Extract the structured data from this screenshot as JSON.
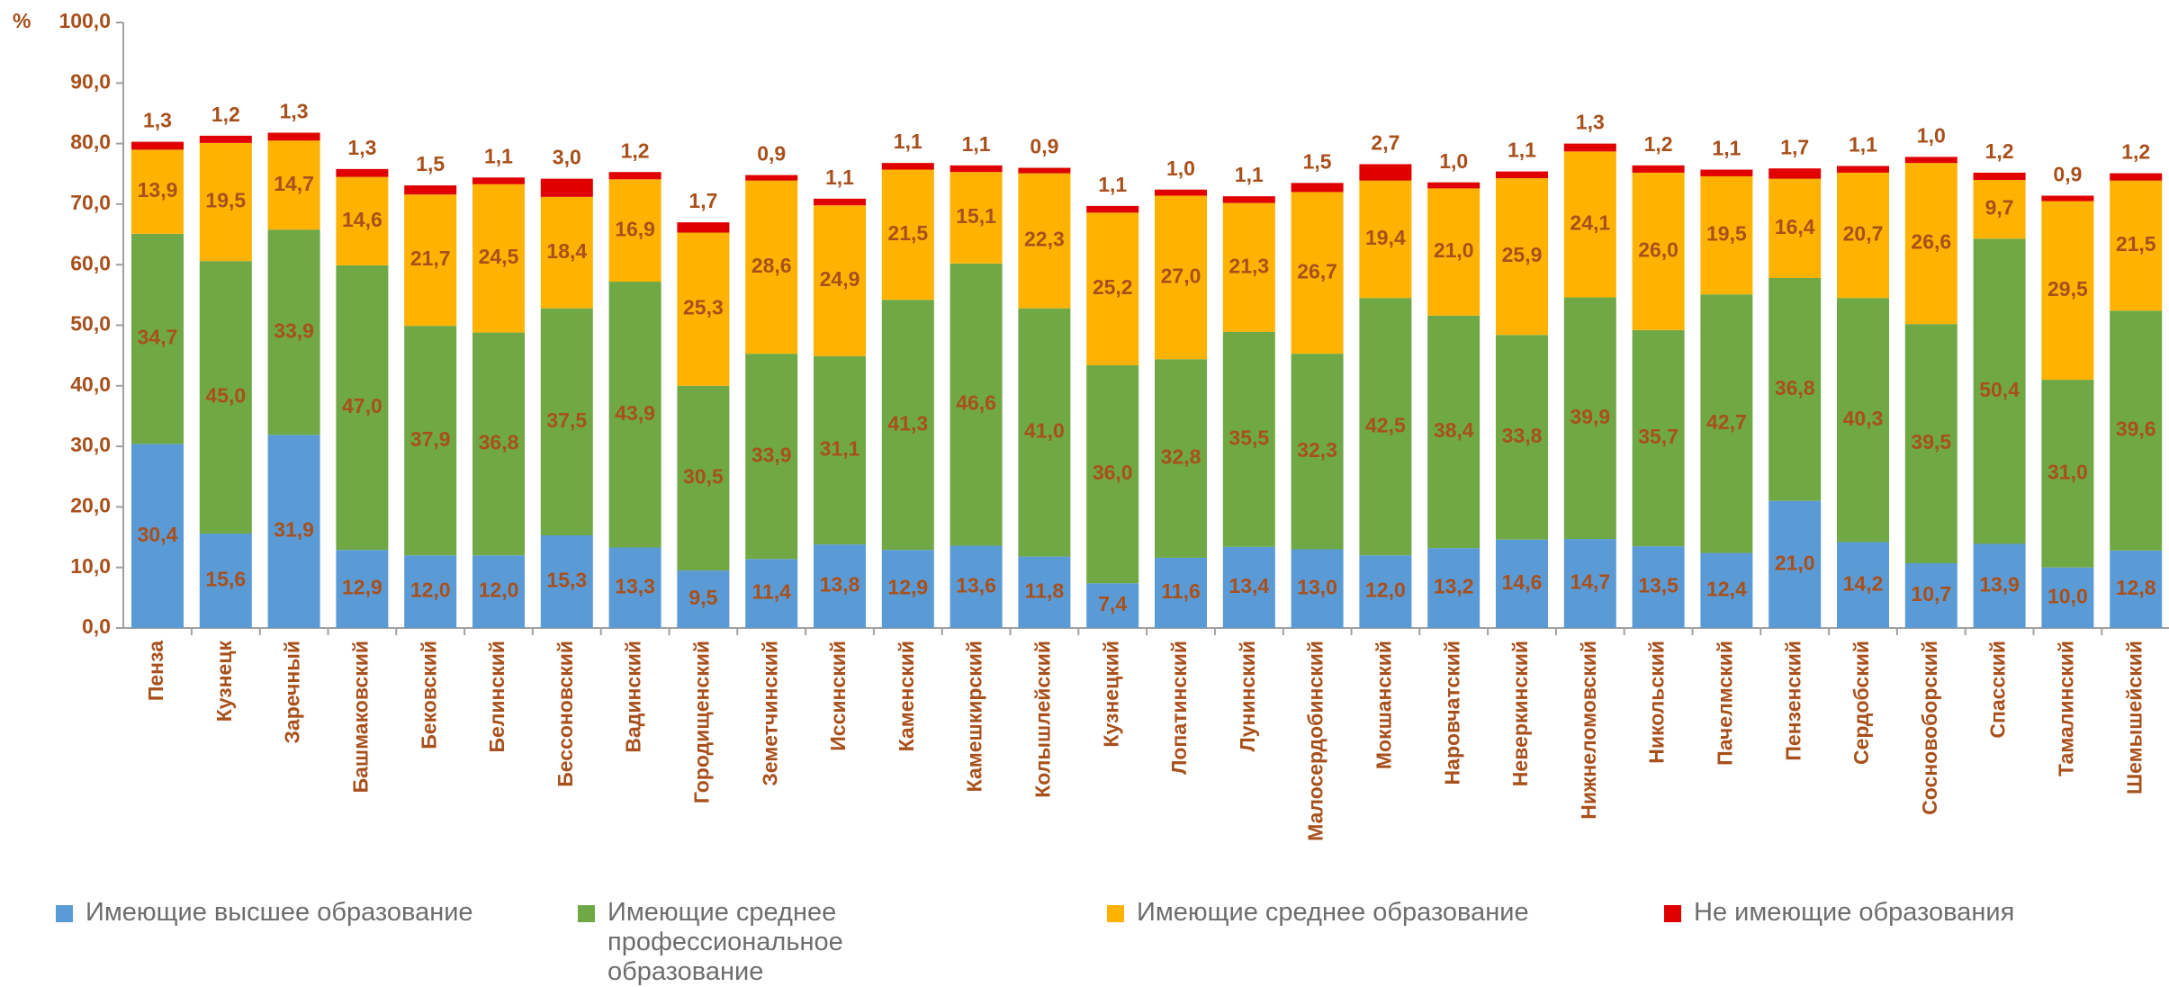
{
  "chart_data": {
    "type": "stacked_bar",
    "y_unit": "%",
    "categories": [
      "Пенза",
      "Кузнецк",
      "Заречный",
      "Башмаковский",
      "Бековский",
      "Белинский",
      "Бессоновский",
      "Вадинский",
      "Городищенский",
      "Земетчинский",
      "Иссинский",
      "Каменский",
      "Камешкирский",
      "Колышлейский",
      "Кузнецкий",
      "Лопатинский",
      "Лунинский",
      "Малосердобинский",
      "Мокшанский",
      "Наровчатский",
      "Неверкинский",
      "Нижнеломовский",
      "Никольский",
      "Пачелмский",
      "Пензенский",
      "Сердобский",
      "Сосновоборский",
      "Спасский",
      "Тамалинский",
      "Шемышейский"
    ],
    "series": [
      {
        "name": "Имеющие высшее образование",
        "color": "#5b9bd5",
        "values": [
          30.4,
          15.6,
          31.9,
          12.9,
          12.0,
          12.0,
          15.3,
          13.3,
          9.5,
          11.4,
          13.8,
          12.9,
          13.6,
          11.8,
          7.4,
          11.6,
          13.4,
          13.0,
          12.0,
          13.2,
          14.6,
          14.7,
          13.5,
          12.4,
          21.0,
          14.2,
          10.7,
          13.9,
          10.0,
          12.8
        ],
        "value_labels": [
          "30,4",
          "15,6",
          "31,9",
          "12,9",
          "12,0",
          "12,0",
          "15,3",
          "13,3",
          "9,5",
          "11,4",
          "13,8",
          "12,9",
          "13,6",
          "11,8",
          "7,4",
          "11,6",
          "13,4",
          "13,0",
          "12,0",
          "13,2",
          "14,6",
          "14,7",
          "13,5",
          "12,4",
          "21,0",
          "14,2",
          "10,7",
          "13,9",
          "10,0",
          "12,8"
        ]
      },
      {
        "name": "Имеющие среднее профессиональное образование",
        "color": "#70a845",
        "values": [
          34.7,
          45.0,
          33.9,
          47.0,
          37.9,
          36.8,
          37.5,
          43.9,
          30.5,
          33.9,
          31.1,
          41.3,
          46.6,
          41.0,
          36.0,
          32.8,
          35.5,
          32.3,
          42.5,
          38.4,
          33.8,
          39.9,
          35.7,
          42.7,
          36.8,
          40.3,
          39.5,
          50.4,
          31.0,
          39.6
        ],
        "value_labels": [
          "34,7",
          "45,0",
          "33,9",
          "47,0",
          "37,9",
          "36,8",
          "37,5",
          "43,9",
          "30,5",
          "33,9",
          "31,1",
          "41,3",
          "46,6",
          "41,0",
          "36,0",
          "32,8",
          "35,5",
          "32,3",
          "42,5",
          "38,4",
          "33,8",
          "39,9",
          "35,7",
          "42,7",
          "36,8",
          "40,3",
          "39,5",
          "50,4",
          "31,0",
          "39,6"
        ]
      },
      {
        "name": "Имеющие среднее образование",
        "color": "#ffb300",
        "values": [
          13.9,
          19.5,
          14.7,
          14.6,
          21.7,
          24.5,
          18.4,
          16.9,
          25.3,
          28.6,
          24.9,
          21.5,
          15.1,
          22.3,
          25.2,
          27.0,
          21.3,
          26.7,
          19.4,
          21.0,
          25.9,
          24.1,
          26.0,
          19.5,
          16.4,
          20.7,
          26.6,
          9.7,
          29.5,
          21.5
        ],
        "value_labels": [
          "13,9",
          "19,5",
          "14,7",
          "14,6",
          "21,7",
          "24,5",
          "18,4",
          "16,9",
          "25,3",
          "28,6",
          "24,9",
          "21,5",
          "15,1",
          "22,3",
          "25,2",
          "27,0",
          "21,3",
          "26,7",
          "19,4",
          "21,0",
          "25,9",
          "24,1",
          "26,0",
          "19,5",
          "16,4",
          "20,7",
          "26,6",
          "9,7",
          "29,5",
          "21,5"
        ]
      },
      {
        "name": "Не имеющие образования",
        "color": "#e00000",
        "values": [
          1.3,
          1.2,
          1.3,
          1.3,
          1.5,
          1.1,
          3.0,
          1.2,
          1.7,
          0.9,
          1.1,
          1.1,
          1.1,
          0.9,
          1.1,
          1.0,
          1.1,
          1.5,
          2.7,
          1.0,
          1.1,
          1.3,
          1.2,
          1.1,
          1.7,
          1.1,
          1.0,
          1.2,
          0.9,
          1.2
        ],
        "value_labels": [
          "1,3",
          "1,2",
          "1,3",
          "1,3",
          "1,5",
          "1,1",
          "3,0",
          "1,2",
          "1,7",
          "0,9",
          "1,1",
          "1,1",
          "1,1",
          "0,9",
          "1,1",
          "1,0",
          "1,1",
          "1,5",
          "2,7",
          "1,0",
          "1,1",
          "1,3",
          "1,2",
          "1,1",
          "1,7",
          "1,1",
          "1,0",
          "1,2",
          "0,9",
          "1,2"
        ]
      }
    ],
    "ylim": [
      0,
      100
    ],
    "yticks": [
      {
        "value": 0,
        "label": "0,0"
      },
      {
        "value": 10,
        "label": "10,0"
      },
      {
        "value": 20,
        "label": "20,0"
      },
      {
        "value": 30,
        "label": "30,0"
      },
      {
        "value": 40,
        "label": "40,0"
      },
      {
        "value": 50,
        "label": "50,0"
      },
      {
        "value": 60,
        "label": "60,0"
      },
      {
        "value": 70,
        "label": "70,0"
      },
      {
        "value": 80,
        "label": "80,0"
      },
      {
        "value": 90,
        "label": "90,0"
      },
      {
        "value": 100,
        "label": "100,0"
      }
    ],
    "legend": "bottom"
  }
}
